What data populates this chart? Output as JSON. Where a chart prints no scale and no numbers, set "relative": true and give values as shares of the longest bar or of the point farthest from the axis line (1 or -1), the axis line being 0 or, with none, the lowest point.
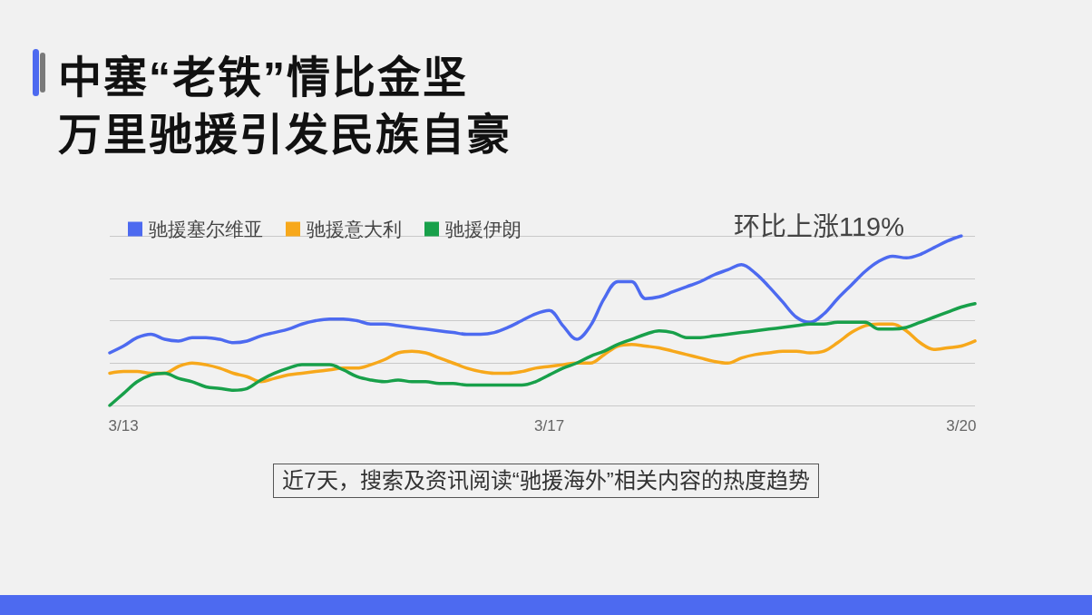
{
  "chart_data": {
    "type": "line",
    "title": "中塞“老铁”情比金坚",
    "subtitle": "万里驰援引发民族自豪",
    "categories": [
      null,
      "3/13",
      null,
      null,
      null,
      null,
      null,
      null,
      null,
      null,
      null,
      null,
      null,
      null,
      null,
      null,
      null,
      null,
      null,
      null,
      null,
      null,
      null,
      null,
      null,
      null,
      null,
      null,
      null,
      null,
      null,
      null,
      "3/17",
      null,
      null,
      null,
      null,
      null,
      null,
      null,
      null,
      null,
      null,
      null,
      null,
      null,
      null,
      null,
      null,
      null,
      null,
      null,
      null,
      null,
      null,
      null,
      null,
      null,
      null,
      null,
      null,
      null,
      "3/20",
      null
    ],
    "relative": true,
    "series": [
      {
        "name": "驰援塞尔维亚",
        "color": "#4d6af0",
        "values": [
          0.31,
          0.35,
          0.4,
          0.42,
          0.39,
          0.38,
          0.4,
          0.4,
          0.39,
          0.37,
          0.38,
          0.41,
          0.43,
          0.45,
          0.48,
          0.5,
          0.51,
          0.51,
          0.5,
          0.48,
          0.48,
          0.47,
          0.46,
          0.45,
          0.44,
          0.43,
          0.42,
          0.42,
          0.43,
          0.46,
          0.5,
          0.54,
          0.56,
          0.47,
          0.39,
          0.47,
          0.63,
          0.73,
          0.73,
          0.63,
          0.64,
          0.67,
          0.7,
          0.73,
          0.77,
          0.8,
          0.83,
          0.78,
          0.7,
          0.61,
          0.52,
          0.49,
          0.54,
          0.63,
          0.71,
          0.79,
          0.85,
          0.88,
          0.87,
          0.89,
          0.93,
          0.97,
          1,
          null
        ]
      },
      {
        "name": "驰援意大利",
        "color": "#f7a81b",
        "values": [
          0.19,
          0.2,
          0.2,
          0.19,
          0.19,
          0.23,
          0.25,
          0.24,
          0.22,
          0.19,
          0.17,
          0.14,
          0.16,
          0.18,
          0.19,
          0.2,
          0.21,
          0.22,
          0.22,
          0.24,
          0.27,
          0.31,
          0.32,
          0.31,
          0.28,
          0.25,
          0.22,
          0.2,
          0.19,
          0.19,
          0.2,
          0.22,
          0.23,
          0.24,
          0.25,
          0.25,
          0.3,
          0.35,
          0.36,
          0.35,
          0.34,
          0.32,
          0.3,
          0.28,
          0.26,
          0.25,
          0.28,
          0.3,
          0.31,
          0.32,
          0.32,
          0.31,
          0.32,
          0.37,
          0.43,
          0.47,
          0.48,
          0.48,
          0.44,
          0.37,
          0.33,
          0.34,
          0.35,
          0.38
        ]
      },
      {
        "name": "驰援伊朗",
        "color": "#18a04a",
        "values": [
          0,
          0.07,
          0.14,
          0.18,
          0.19,
          0.16,
          0.14,
          0.11,
          0.1,
          0.09,
          0.1,
          0.15,
          0.19,
          0.22,
          0.24,
          0.24,
          0.24,
          0.21,
          0.17,
          0.15,
          0.14,
          0.15,
          0.14,
          0.14,
          0.13,
          0.13,
          0.12,
          0.12,
          0.12,
          0.12,
          0.12,
          0.14,
          0.18,
          0.22,
          0.25,
          0.29,
          0.32,
          0.36,
          0.39,
          0.42,
          0.44,
          0.43,
          0.4,
          0.4,
          0.41,
          0.42,
          0.43,
          0.44,
          0.45,
          0.46,
          0.47,
          0.48,
          0.48,
          0.49,
          0.49,
          0.49,
          0.45,
          0.45,
          0.46,
          0.49,
          0.52,
          0.55,
          0.58,
          0.6
        ]
      }
    ],
    "legend": "top left",
    "grid": "y",
    "annotations": [
      "环比上涨119%",
      "近7天，搜索及资讯阅读“驰援海外”相关内容的热度趋势"
    ]
  }
}
